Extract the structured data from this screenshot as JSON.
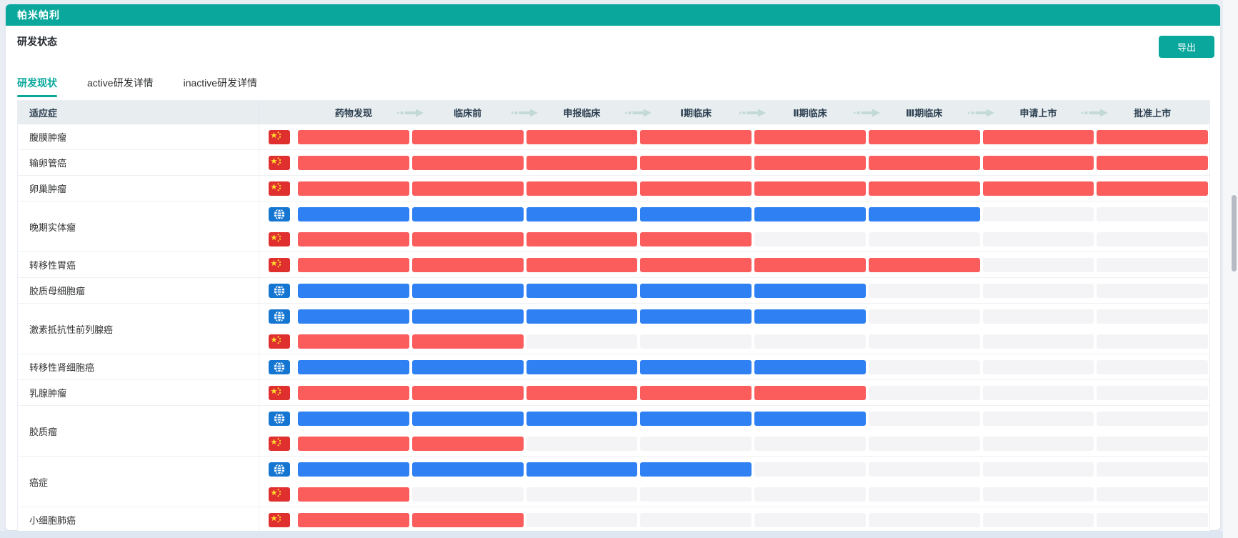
{
  "page": {
    "title": "帕米帕利",
    "section_title": "研发状态",
    "export_label": "导出"
  },
  "tabs": [
    {
      "label": "研发现状",
      "active": true
    },
    {
      "label": "active研发详情",
      "active": false
    },
    {
      "label": "inactive研发详情",
      "active": false
    }
  ],
  "table": {
    "indication_header": "适应症",
    "stages": [
      "药物发现",
      "临床前",
      "申报临床",
      "Ⅰ期临床",
      "Ⅱ期临床",
      "Ⅲ期临床",
      "申请上市",
      "批准上市"
    ],
    "stage_count": 8,
    "rows": [
      {
        "indication": "腹膜肿瘤",
        "tracks": [
          {
            "region": "china",
            "progress": 8
          }
        ]
      },
      {
        "indication": "输卵管癌",
        "tracks": [
          {
            "region": "china",
            "progress": 8
          }
        ]
      },
      {
        "indication": "卵巢肿瘤",
        "tracks": [
          {
            "region": "china",
            "progress": 8
          }
        ]
      },
      {
        "indication": "晚期实体瘤",
        "tracks": [
          {
            "region": "global",
            "progress": 6
          },
          {
            "region": "china",
            "progress": 4
          }
        ]
      },
      {
        "indication": "转移性胃癌",
        "tracks": [
          {
            "region": "china",
            "progress": 6
          }
        ]
      },
      {
        "indication": "胶质母细胞瘤",
        "tracks": [
          {
            "region": "global",
            "progress": 5
          }
        ]
      },
      {
        "indication": "激素抵抗性前列腺癌",
        "tracks": [
          {
            "region": "global",
            "progress": 5
          },
          {
            "region": "china",
            "progress": 2
          }
        ]
      },
      {
        "indication": "转移性肾细胞癌",
        "tracks": [
          {
            "region": "global",
            "progress": 5
          }
        ]
      },
      {
        "indication": "乳腺肿瘤",
        "tracks": [
          {
            "region": "china",
            "progress": 5
          }
        ]
      },
      {
        "indication": "胶质瘤",
        "tracks": [
          {
            "region": "global",
            "progress": 5
          },
          {
            "region": "china",
            "progress": 2
          }
        ]
      },
      {
        "indication": "癌症",
        "tracks": [
          {
            "region": "global",
            "progress": 4
          },
          {
            "region": "china",
            "progress": 1
          }
        ]
      },
      {
        "indication": "小细胞肺癌",
        "tracks": [
          {
            "region": "china",
            "progress": 2
          }
        ]
      }
    ]
  },
  "icons": {
    "china": "china-flag-icon",
    "global": "globe-icon",
    "stage_separator": "arrow-right-icon"
  },
  "colors": {
    "accent_teal": "#0aa89c",
    "bar_red": "#fb5c5c",
    "bar_blue": "#2f81f3",
    "empty_cell": "#f4f4f6",
    "header_row_bg": "#e8eef0",
    "arrow": "#c3d9d6",
    "flag_red": "#e02f2f",
    "flag_star_yellow": "#ffde2e",
    "globe_blue": "#1576d2"
  }
}
